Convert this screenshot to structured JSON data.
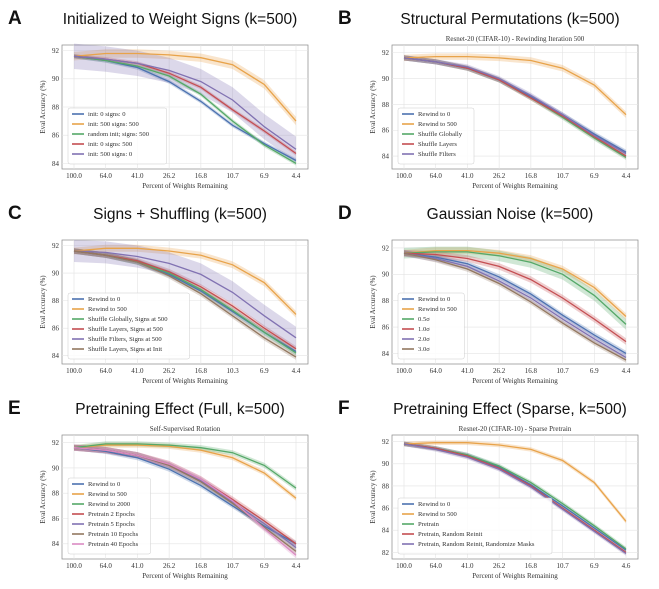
{
  "colors": {
    "blue": "#4c72b0",
    "orange": "#e8a34a",
    "green": "#55a868",
    "red": "#c44e52",
    "purple": "#8172b2",
    "brown": "#937860",
    "pink": "#da8bc3",
    "gray": "#8c8c8c"
  },
  "chart_data": [
    {
      "id": "A",
      "type": "line",
      "letter": "A",
      "heading": "Initialized to Weight Signs (k=500)",
      "title": "",
      "xlabel": "Percent of Weights Remaining",
      "ylabel": "Eval Accuracy (%)",
      "categories": [
        "100.0",
        "64.0",
        "41.0",
        "26.2",
        "16.8",
        "10.7",
        "6.9",
        "4.4"
      ],
      "yticks": [
        84,
        86,
        88,
        90,
        92
      ],
      "ylim": [
        83.6,
        92.4
      ],
      "grid": true,
      "legend_position": "lower-left",
      "series": [
        {
          "name": "init: 0 signs: 0",
          "color": "blue",
          "values": [
            91.6,
            91.3,
            90.8,
            89.8,
            88.4,
            86.7,
            85.4,
            84.2
          ],
          "band": 0.15
        },
        {
          "name": "init: 500 signs: 500",
          "color": "orange",
          "values": [
            91.6,
            91.8,
            91.8,
            91.7,
            91.5,
            91.0,
            89.6,
            87.0
          ],
          "band": 0.3
        },
        {
          "name": "random init; signs: 500",
          "color": "green",
          "values": [
            91.6,
            91.3,
            90.9,
            90.2,
            88.9,
            87.0,
            85.3,
            84.0
          ],
          "band": 0.15
        },
        {
          "name": "init: 0 signs: 500",
          "color": "red",
          "values": [
            91.6,
            91.4,
            91.1,
            90.4,
            89.4,
            87.8,
            86.3,
            84.7
          ],
          "band": 0.15
        },
        {
          "name": "init: 500 signs: 0",
          "color": "purple",
          "values": [
            91.6,
            91.4,
            91.1,
            90.6,
            89.8,
            88.5,
            86.6,
            85.0
          ],
          "band": 0.9
        }
      ]
    },
    {
      "id": "B",
      "type": "line",
      "letter": "B",
      "heading": "Structural Permutations (k=500)",
      "title": "Resnet-20 (CIFAR-10) - Rewinding Iteration 500",
      "xlabel": "Percent of Weights Remaining",
      "ylabel": "Eval Accuracy (%)",
      "categories": [
        "100.0",
        "64.0",
        "41.0",
        "26.2",
        "16.8",
        "10.7",
        "6.9",
        "4.4"
      ],
      "yticks": [
        84,
        86,
        88,
        90,
        92
      ],
      "ylim": [
        83.0,
        92.6
      ],
      "grid": true,
      "legend_position": "lower-left",
      "series": [
        {
          "name": "Rewind to 0",
          "color": "blue",
          "values": [
            91.6,
            91.3,
            90.8,
            89.9,
            88.6,
            87.2,
            85.7,
            84.3
          ],
          "band": 0.2
        },
        {
          "name": "Rewind to 500",
          "color": "orange",
          "values": [
            91.6,
            91.7,
            91.7,
            91.6,
            91.4,
            90.8,
            89.5,
            87.2
          ],
          "band": 0.25
        },
        {
          "name": "Shuffle Globally",
          "color": "green",
          "values": [
            91.6,
            91.3,
            90.8,
            89.9,
            88.5,
            87.0,
            85.4,
            83.9
          ],
          "band": 0.2
        },
        {
          "name": "Shuffle Layers",
          "color": "red",
          "values": [
            91.6,
            91.3,
            90.8,
            89.9,
            88.5,
            87.1,
            85.5,
            84.0
          ],
          "band": 0.2
        },
        {
          "name": "Shuffle Filters",
          "color": "purple",
          "values": [
            91.6,
            91.3,
            90.9,
            90.0,
            88.7,
            87.2,
            85.6,
            84.2
          ],
          "band": 0.2
        }
      ]
    },
    {
      "id": "C",
      "type": "line",
      "letter": "C",
      "heading": "Signs + Shuffling (k=500)",
      "title": "",
      "xlabel": "Percent of Weights Remaining",
      "ylabel": "Eval Accuracy (%)",
      "categories": [
        "100.0",
        "64.0",
        "41.0",
        "26.2",
        "16.8",
        "10.3",
        "6.9",
        "4.4"
      ],
      "yticks": [
        84,
        86,
        88,
        90,
        92
      ],
      "ylim": [
        83.4,
        92.4
      ],
      "grid": true,
      "legend_position": "lower-left",
      "series": [
        {
          "name": "Rewind to 0",
          "color": "blue",
          "values": [
            91.6,
            91.3,
            90.8,
            89.9,
            88.7,
            87.2,
            85.7,
            84.3
          ],
          "band": 0.2
        },
        {
          "name": "Rewind to 500",
          "color": "orange",
          "values": [
            91.6,
            91.8,
            91.8,
            91.6,
            91.3,
            90.6,
            89.3,
            87.0
          ],
          "band": 0.25
        },
        {
          "name": "Shuffle Globally, Signs at 500",
          "color": "green",
          "values": [
            91.6,
            91.3,
            90.8,
            90.0,
            88.8,
            87.3,
            85.7,
            84.2
          ],
          "band": 0.2
        },
        {
          "name": "Shuffle Layers, Signs at 500",
          "color": "red",
          "values": [
            91.6,
            91.3,
            90.9,
            90.1,
            89.0,
            87.6,
            86.0,
            84.5
          ],
          "band": 0.2
        },
        {
          "name": "Shuffle Filters, Signs at 500",
          "color": "purple",
          "values": [
            91.6,
            91.5,
            91.2,
            90.7,
            89.9,
            88.6,
            86.9,
            85.3
          ],
          "band": 0.8
        },
        {
          "name": "Shuffle Layers, Signs at Init",
          "color": "brown",
          "values": [
            91.6,
            91.3,
            90.8,
            89.8,
            88.5,
            86.9,
            85.3,
            83.9
          ],
          "band": 0.2
        }
      ]
    },
    {
      "id": "D",
      "type": "line",
      "letter": "D",
      "heading": "Gaussian Noise (k=500)",
      "title": "",
      "xlabel": "Percent of Weights Remaining",
      "ylabel": "Eval Accuracy (%)",
      "categories": [
        "100.0",
        "64.0",
        "41.0",
        "26.2",
        "16.8",
        "10.7",
        "6.9",
        "4.4"
      ],
      "yticks": [
        84,
        86,
        88,
        90,
        92
      ],
      "ylim": [
        83.2,
        92.6
      ],
      "grid": true,
      "legend_position": "lower-left",
      "series": [
        {
          "name": "Rewind to 0",
          "color": "blue",
          "values": [
            91.6,
            91.3,
            90.8,
            89.8,
            88.5,
            86.9,
            85.4,
            84.0
          ],
          "band": 0.2
        },
        {
          "name": "Rewind to 500",
          "color": "orange",
          "values": [
            91.6,
            91.8,
            91.8,
            91.6,
            91.2,
            90.4,
            89.0,
            86.8
          ],
          "band": 0.25
        },
        {
          "name": "0.5σ",
          "color": "green",
          "values": [
            91.6,
            91.7,
            91.7,
            91.4,
            90.9,
            90.0,
            88.4,
            86.2
          ],
          "band": 0.4
        },
        {
          "name": "1.0σ",
          "color": "red",
          "values": [
            91.6,
            91.5,
            91.2,
            90.6,
            89.6,
            88.2,
            86.6,
            84.9
          ],
          "band": 0.25
        },
        {
          "name": "2.0σ",
          "color": "purple",
          "values": [
            91.6,
            91.2,
            90.6,
            89.5,
            88.2,
            86.6,
            85.1,
            83.7
          ],
          "band": 0.25
        },
        {
          "name": "3.0σ",
          "color": "brown",
          "values": [
            91.6,
            91.1,
            90.4,
            89.3,
            87.9,
            86.3,
            84.8,
            83.5
          ],
          "band": 0.2
        }
      ]
    },
    {
      "id": "E",
      "type": "line",
      "letter": "E",
      "heading": "Pretraining Effect (Full, k=500)",
      "title": "Self-Supervised Rotation",
      "xlabel": "Percent of Weights Remaining",
      "ylabel": "Eval Accuracy (%)",
      "categories": [
        "100.0",
        "64.0",
        "41.0",
        "26.2",
        "16.8",
        "10.7",
        "6.9",
        "4.4"
      ],
      "yticks": [
        84,
        86,
        88,
        90,
        92
      ],
      "ylim": [
        82.8,
        92.6
      ],
      "grid": true,
      "legend_position": "lower-left",
      "series": [
        {
          "name": "Rewind to 0",
          "color": "blue",
          "values": [
            91.6,
            91.3,
            90.8,
            89.9,
            88.6,
            87.0,
            85.4,
            84.0
          ],
          "band": 0.2
        },
        {
          "name": "Rewind to 500",
          "color": "orange",
          "values": [
            91.6,
            91.8,
            91.8,
            91.7,
            91.4,
            90.8,
            89.6,
            87.6
          ],
          "band": 0.2
        },
        {
          "name": "Rewind to 2000",
          "color": "green",
          "values": [
            91.6,
            91.9,
            91.9,
            91.8,
            91.6,
            91.2,
            90.2,
            88.4
          ],
          "band": 0.2
        },
        {
          "name": "Pretrain 2 Epochs",
          "color": "red",
          "values": [
            91.6,
            91.4,
            91.0,
            90.3,
            89.1,
            87.5,
            85.8,
            84.0
          ],
          "band": 0.25
        },
        {
          "name": "Pretrain 5 Epochs",
          "color": "purple",
          "values": [
            91.6,
            91.4,
            91.0,
            90.2,
            89.0,
            87.3,
            85.6,
            83.7
          ],
          "band": 0.25
        },
        {
          "name": "Pretrain 10 Epochs",
          "color": "brown",
          "values": [
            91.6,
            91.4,
            91.0,
            90.2,
            88.9,
            87.2,
            85.3,
            83.4
          ],
          "band": 0.25
        },
        {
          "name": "Pretrain 40 Epochs",
          "color": "pink",
          "values": [
            91.6,
            91.4,
            91.0,
            90.3,
            89.1,
            87.4,
            85.2,
            83.1
          ],
          "band": 0.25
        }
      ]
    },
    {
      "id": "F",
      "type": "line",
      "letter": "F",
      "heading": "Pretraining Effect (Sparse, k=500)",
      "title": "Resnet-20 (CIFAR-10) - Sparse Pretrain",
      "xlabel": "Percent of Weights Remaining",
      "ylabel": "Eval Accuracy (%)",
      "categories": [
        "100.0",
        "64.0",
        "41.0",
        "26.2",
        "16.8",
        "10.7",
        "6.9",
        "4.6"
      ],
      "yticks": [
        82,
        84,
        86,
        88,
        90,
        92
      ],
      "ylim": [
        81.4,
        92.6
      ],
      "grid": true,
      "legend_position": "lower-left",
      "series": [
        {
          "name": "Rewind to 0",
          "color": "blue",
          "values": [
            91.8,
            91.4,
            90.8,
            89.7,
            88.1,
            86.2,
            84.2,
            82.2
          ],
          "band": 0.2
        },
        {
          "name": "Rewind to 500",
          "color": "orange",
          "values": [
            91.8,
            91.9,
            91.9,
            91.7,
            91.3,
            90.3,
            88.3,
            84.8
          ],
          "band": 0.2
        },
        {
          "name": "Pretrain",
          "color": "green",
          "values": [
            91.8,
            91.4,
            90.8,
            89.8,
            88.3,
            86.4,
            84.4,
            82.3
          ],
          "band": 0.2
        },
        {
          "name": "Pretrain, Random Reinit",
          "color": "red",
          "values": [
            91.8,
            91.4,
            90.7,
            89.6,
            88.0,
            86.0,
            84.0,
            82.0
          ],
          "band": 0.2
        },
        {
          "name": "Pretrain, Random Reinit, Randomize Masks",
          "color": "purple",
          "values": [
            91.8,
            91.3,
            90.6,
            89.5,
            87.9,
            85.9,
            83.9,
            81.9
          ],
          "band": 0.2
        }
      ]
    }
  ]
}
